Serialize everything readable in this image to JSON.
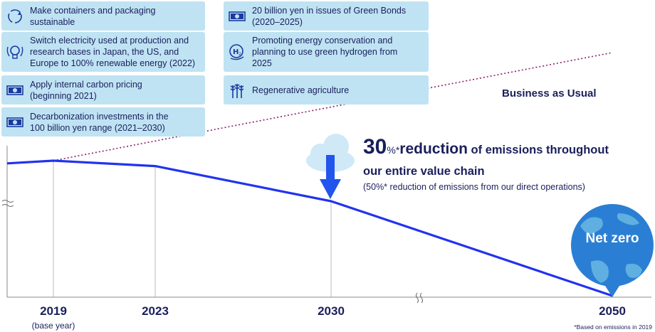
{
  "initiatives_left": [
    {
      "icon": "recycle-icon",
      "text": "Make containers and packaging\nsustainable"
    },
    {
      "icon": "renewable-bulb-icon",
      "text": "Switch electricity used at production and\nresearch bases in Japan, the US, and\nEurope to 100% renewable energy (2022)"
    },
    {
      "icon": "money-icon",
      "text": "Apply internal carbon pricing\n(beginning 2021)"
    },
    {
      "icon": "money-icon",
      "text": "Decarbonization investments in the\n100 billion yen range (2021–2030)"
    }
  ],
  "initiatives_right": [
    {
      "icon": "money-icon",
      "text": "20 billion yen in issues of Green Bonds\n(2020–2025)"
    },
    {
      "icon": "hydrogen-icon",
      "text": "Promoting energy conservation and\nplanning to use green hydrogen from\n2025"
    },
    {
      "icon": "wheat-icon",
      "text": "Regenerative agriculture"
    }
  ],
  "business_as_usual": "Business as Usual",
  "headline": {
    "big": "30",
    "pct": "%*",
    "reduction": "reduction",
    "rest": " of emissions throughout",
    "line2": "our entire value chain",
    "note": "(50%* reduction of emissions from our direct operations)"
  },
  "net_zero": "Net zero",
  "footnote": "*Based on emissions in 2019",
  "colors": {
    "box": "#bfe3f3",
    "navy": "#1a1f5c",
    "line": "#2233ee",
    "bau": "#8a1f6a",
    "arrow": "#2255ee",
    "globe": "#2a7fd4",
    "land": "#5fb0e0"
  },
  "chart_data": {
    "type": "line",
    "x_labels": [
      "2019",
      "2023",
      "2030",
      "2050"
    ],
    "x_sublabels": {
      "2019": "(base year)"
    },
    "series": [
      {
        "name": "Business as Usual",
        "points": [
          [
            "2019",
            100
          ],
          [
            "2050",
            180
          ]
        ],
        "style": "dotted"
      },
      {
        "points": [
          [
            "start",
            98
          ],
          [
            "2019",
            100
          ],
          [
            "2023",
            96
          ],
          [
            "2030",
            70
          ],
          [
            "2050",
            0
          ]
        ],
        "style": "solid"
      }
    ],
    "annotations": [
      "30%* reduction of emissions throughout our entire value chain",
      "Net zero"
    ],
    "axis_breaks": [
      "y",
      "x between 2030 and 2050"
    ]
  }
}
